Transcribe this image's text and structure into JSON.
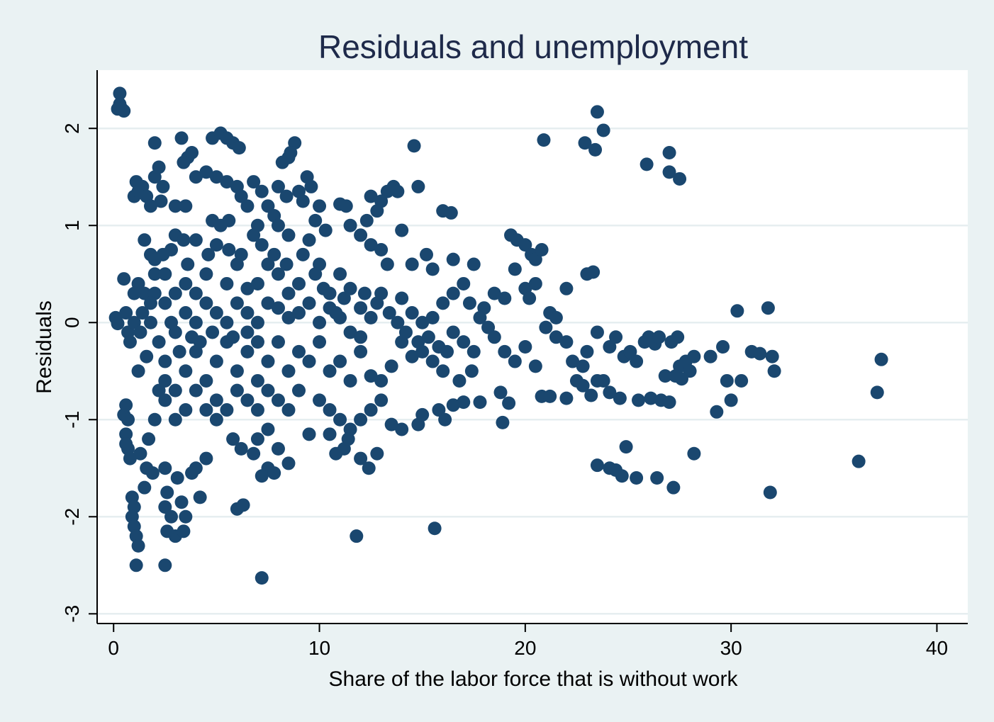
{
  "chart_data": {
    "type": "scatter",
    "title": "Residuals and unemployment",
    "xlabel": "Share of the labor force that is without work",
    "ylabel": "Residuals",
    "xlim": [
      -0.8,
      41.5
    ],
    "ylim": [
      -3.1,
      2.6
    ],
    "xticks": [
      0,
      10,
      20,
      30,
      40
    ],
    "xtick_labels": [
      "0",
      "10",
      "20",
      "30",
      "40"
    ],
    "yticks": [
      -3,
      -2,
      -1,
      0,
      1,
      2
    ],
    "ytick_labels": [
      "-3",
      "-2",
      "-1",
      "0",
      "1",
      "2"
    ],
    "grid": true,
    "marker_color": "#1a476f",
    "plot_background": "#ffffff",
    "figure_background": "#eaf2f3",
    "points": [
      [
        0.3,
        2.36
      ],
      [
        0.3,
        2.25
      ],
      [
        0.4,
        2.2
      ],
      [
        0.5,
        2.18
      ],
      [
        0.2,
        2.2
      ],
      [
        0.1,
        0.05
      ],
      [
        0.2,
        -0.01
      ],
      [
        0.5,
        0.45
      ],
      [
        0.6,
        0.1
      ],
      [
        0.7,
        -0.1
      ],
      [
        0.8,
        -0.2
      ],
      [
        0.5,
        -0.95
      ],
      [
        0.6,
        -0.85
      ],
      [
        0.7,
        -1.0
      ],
      [
        0.6,
        -1.15
      ],
      [
        0.7,
        -1.3
      ],
      [
        0.8,
        -1.4
      ],
      [
        0.6,
        -1.25
      ],
      [
        0.9,
        -1.8
      ],
      [
        1.0,
        -1.9
      ],
      [
        0.9,
        -2.0
      ],
      [
        1.0,
        -2.1
      ],
      [
        1.1,
        -2.2
      ],
      [
        1.2,
        -2.3
      ],
      [
        1.1,
        -2.5
      ],
      [
        1.0,
        1.3
      ],
      [
        1.1,
        1.45
      ],
      [
        1.2,
        1.35
      ],
      [
        1.4,
        1.4
      ],
      [
        1.6,
        1.3
      ],
      [
        1.8,
        1.2
      ],
      [
        2.0,
        1.5
      ],
      [
        2.2,
        1.6
      ],
      [
        2.0,
        1.85
      ],
      [
        2.4,
        1.4
      ],
      [
        2.3,
        1.25
      ],
      [
        1.5,
        0.85
      ],
      [
        1.8,
        0.7
      ],
      [
        2.0,
        0.5
      ],
      [
        1.2,
        0.4
      ],
      [
        1.5,
        0.3
      ],
      [
        1.8,
        0.0
      ],
      [
        1.2,
        -0.5
      ],
      [
        1.6,
        -0.35
      ],
      [
        1.3,
        -1.35
      ],
      [
        1.6,
        -1.5
      ],
      [
        1.9,
        -1.55
      ],
      [
        1.5,
        -1.7
      ],
      [
        1.7,
        -1.2
      ],
      [
        2.0,
        -1.0
      ],
      [
        2.2,
        -0.7
      ],
      [
        2.5,
        -0.6
      ],
      [
        2.5,
        -1.5
      ],
      [
        2.6,
        -1.75
      ],
      [
        2.5,
        -1.9
      ],
      [
        2.8,
        -2.0
      ],
      [
        3.0,
        -2.2
      ],
      [
        2.6,
        -2.15
      ],
      [
        2.5,
        -2.5
      ],
      [
        3.1,
        -1.6
      ],
      [
        3.3,
        -1.85
      ],
      [
        3.5,
        -2.0
      ],
      [
        3.4,
        -2.15
      ],
      [
        3.0,
        1.2
      ],
      [
        3.3,
        1.9
      ],
      [
        3.6,
        1.7
      ],
      [
        3.8,
        1.75
      ],
      [
        3.4,
        1.65
      ],
      [
        3.5,
        1.2
      ],
      [
        3.0,
        0.9
      ],
      [
        3.6,
        0.6
      ],
      [
        4.0,
        1.5
      ],
      [
        4.5,
        1.55
      ],
      [
        4.8,
        1.9
      ],
      [
        5.2,
        1.95
      ],
      [
        5.5,
        1.9
      ],
      [
        5.8,
        1.85
      ],
      [
        6.1,
        1.8
      ],
      [
        5.0,
        1.5
      ],
      [
        5.5,
        1.45
      ],
      [
        6.0,
        1.4
      ],
      [
        4.8,
        1.05
      ],
      [
        5.2,
        1.0
      ],
      [
        5.6,
        1.05
      ],
      [
        6.2,
        1.3
      ],
      [
        6.5,
        1.2
      ],
      [
        6.8,
        1.45
      ],
      [
        7.2,
        1.35
      ],
      [
        7.5,
        1.2
      ],
      [
        7.0,
        1.0
      ],
      [
        7.8,
        1.1
      ],
      [
        8.2,
        1.65
      ],
      [
        8.5,
        1.7
      ],
      [
        8.8,
        1.85
      ],
      [
        8.6,
        1.75
      ],
      [
        8.0,
        1.4
      ],
      [
        8.4,
        1.3
      ],
      [
        8.0,
        1.0
      ],
      [
        8.5,
        0.9
      ],
      [
        9.0,
        1.35
      ],
      [
        9.4,
        1.5
      ],
      [
        9.6,
        1.4
      ],
      [
        9.2,
        1.25
      ],
      [
        10.0,
        1.2
      ],
      [
        9.8,
        1.05
      ],
      [
        10.3,
        0.95
      ],
      [
        9.5,
        0.85
      ],
      [
        11.0,
        1.22
      ],
      [
        11.3,
        1.2
      ],
      [
        11.5,
        1.0
      ],
      [
        12.0,
        0.9
      ],
      [
        12.3,
        1.05
      ],
      [
        12.5,
        1.3
      ],
      [
        12.8,
        1.15
      ],
      [
        13.0,
        1.25
      ],
      [
        13.3,
        1.35
      ],
      [
        13.6,
        1.4
      ],
      [
        13.8,
        1.35
      ],
      [
        14.0,
        0.95
      ],
      [
        12.5,
        0.8
      ],
      [
        13.0,
        0.75
      ],
      [
        13.3,
        0.6
      ],
      [
        14.5,
        0.6
      ],
      [
        14.8,
        1.4
      ],
      [
        14.6,
        1.82
      ],
      [
        15.2,
        0.7
      ],
      [
        15.5,
        0.55
      ],
      [
        16.0,
        1.15
      ],
      [
        16.4,
        1.13
      ],
      [
        16.5,
        0.65
      ],
      [
        17.0,
        0.4
      ],
      [
        17.5,
        0.6
      ],
      [
        17.3,
        0.2
      ],
      [
        18.0,
        0.15
      ],
      [
        18.5,
        0.3
      ],
      [
        19.0,
        0.25
      ],
      [
        19.3,
        0.9
      ],
      [
        19.6,
        0.85
      ],
      [
        20.0,
        0.8
      ],
      [
        20.3,
        0.7
      ],
      [
        20.5,
        0.65
      ],
      [
        20.8,
        0.75
      ],
      [
        19.5,
        0.55
      ],
      [
        20.0,
        0.35
      ],
      [
        20.5,
        0.4
      ],
      [
        20.2,
        0.25
      ],
      [
        21.2,
        0.1
      ],
      [
        21.5,
        0.05
      ],
      [
        22.0,
        0.35
      ],
      [
        20.9,
        1.88
      ],
      [
        23.0,
        0.5
      ],
      [
        23.3,
        0.52
      ],
      [
        22.9,
        1.85
      ],
      [
        23.4,
        1.78
      ],
      [
        23.5,
        2.17
      ],
      [
        23.8,
        1.98
      ],
      [
        25.9,
        1.63
      ],
      [
        27.0,
        1.75
      ],
      [
        27.0,
        1.55
      ],
      [
        27.5,
        1.48
      ],
      [
        21.0,
        -0.05
      ],
      [
        21.5,
        -0.15
      ],
      [
        22.0,
        -0.2
      ],
      [
        22.3,
        -0.4
      ],
      [
        22.8,
        -0.45
      ],
      [
        23.0,
        -0.3
      ],
      [
        23.5,
        -0.1
      ],
      [
        23.8,
        -0.6
      ],
      [
        24.1,
        -0.25
      ],
      [
        24.4,
        -0.15
      ],
      [
        24.8,
        -0.35
      ],
      [
        25.1,
        -0.3
      ],
      [
        25.4,
        -0.4
      ],
      [
        25.8,
        -0.2
      ],
      [
        26.0,
        -0.15
      ],
      [
        26.3,
        -0.22
      ],
      [
        26.5,
        -0.15
      ],
      [
        26.8,
        -0.55
      ],
      [
        27.1,
        -0.2
      ],
      [
        27.4,
        -0.15
      ],
      [
        27.5,
        -0.45
      ],
      [
        27.8,
        -0.4
      ],
      [
        28.0,
        -0.5
      ],
      [
        28.2,
        -0.35
      ],
      [
        29.0,
        -0.35
      ],
      [
        29.6,
        -0.25
      ],
      [
        30.3,
        0.12
      ],
      [
        31.8,
        0.15
      ],
      [
        31.0,
        -0.3
      ],
      [
        31.4,
        -0.32
      ],
      [
        32.0,
        -0.35
      ],
      [
        32.1,
        -0.5
      ],
      [
        30.5,
        -0.6
      ],
      [
        29.8,
        -0.6
      ],
      [
        30.0,
        -0.8
      ],
      [
        29.3,
        -0.92
      ],
      [
        20.8,
        -0.76
      ],
      [
        21.2,
        -0.76
      ],
      [
        22.0,
        -0.78
      ],
      [
        22.5,
        -0.6
      ],
      [
        22.8,
        -0.65
      ],
      [
        23.2,
        -0.75
      ],
      [
        23.5,
        -0.6
      ],
      [
        24.1,
        -0.72
      ],
      [
        24.6,
        -0.78
      ],
      [
        25.5,
        -0.8
      ],
      [
        26.1,
        -0.78
      ],
      [
        26.6,
        -0.8
      ],
      [
        27.0,
        -0.82
      ],
      [
        27.3,
        -0.55
      ],
      [
        27.6,
        -0.58
      ],
      [
        23.5,
        -1.47
      ],
      [
        24.1,
        -1.5
      ],
      [
        24.4,
        -1.52
      ],
      [
        24.7,
        -1.58
      ],
      [
        24.9,
        -1.28
      ],
      [
        25.4,
        -1.6
      ],
      [
        26.4,
        -1.6
      ],
      [
        27.2,
        -1.7
      ],
      [
        28.2,
        -1.35
      ],
      [
        31.9,
        -1.75
      ],
      [
        36.2,
        -1.43
      ],
      [
        37.1,
        -0.72
      ],
      [
        37.3,
        -0.38
      ],
      [
        10.0,
        -0.8
      ],
      [
        10.5,
        -0.9
      ],
      [
        11.0,
        -1.0
      ],
      [
        11.5,
        -1.1
      ],
      [
        12.0,
        -1.0
      ],
      [
        12.5,
        -0.9
      ],
      [
        13.0,
        -0.8
      ],
      [
        13.5,
        -1.05
      ],
      [
        14.0,
        -1.1
      ],
      [
        14.8,
        -1.05
      ],
      [
        15.0,
        -0.95
      ],
      [
        15.8,
        -0.9
      ],
      [
        16.1,
        -1.0
      ],
      [
        10.8,
        -1.35
      ],
      [
        11.2,
        -1.3
      ],
      [
        12.0,
        -1.4
      ],
      [
        12.4,
        -1.5
      ],
      [
        12.8,
        -1.35
      ],
      [
        9.5,
        -1.15
      ],
      [
        10.5,
        -1.15
      ],
      [
        11.4,
        -1.2
      ],
      [
        16.5,
        -0.85
      ],
      [
        17.0,
        -0.82
      ],
      [
        17.8,
        -0.82
      ],
      [
        18.8,
        -0.72
      ],
      [
        19.2,
        -0.83
      ],
      [
        18.9,
        -1.03
      ],
      [
        17.4,
        -0.5
      ],
      [
        16.8,
        -0.6
      ],
      [
        11.8,
        -2.2
      ],
      [
        15.6,
        -2.12
      ],
      [
        7.2,
        -2.63
      ],
      [
        6.0,
        -1.92
      ],
      [
        6.3,
        -1.88
      ],
      [
        7.5,
        -1.5
      ],
      [
        7.2,
        -1.58
      ],
      [
        7.8,
        -1.55
      ],
      [
        5.8,
        -1.2
      ],
      [
        6.2,
        -1.3
      ],
      [
        6.8,
        -1.35
      ],
      [
        7.0,
        -1.2
      ],
      [
        7.5,
        -1.1
      ],
      [
        8.0,
        -1.3
      ],
      [
        8.5,
        -1.45
      ],
      [
        5.0,
        -1.0
      ],
      [
        4.5,
        -1.4
      ],
      [
        4.0,
        -1.5
      ],
      [
        3.8,
        -1.55
      ],
      [
        4.2,
        -1.8
      ],
      [
        17.8,
        0.05
      ],
      [
        18.2,
        -0.05
      ],
      [
        18.5,
        -0.15
      ],
      [
        19.0,
        -0.3
      ],
      [
        19.5,
        -0.4
      ],
      [
        20.0,
        -0.25
      ],
      [
        20.5,
        -0.45
      ],
      [
        17.5,
        -0.3
      ],
      [
        17.0,
        -0.2
      ],
      [
        16.5,
        -0.1
      ],
      [
        15.0,
        -0.3
      ],
      [
        15.5,
        -0.4
      ],
      [
        16.0,
        -0.5
      ],
      [
        14.0,
        -0.2
      ],
      [
        14.5,
        -0.35
      ],
      [
        13.5,
        -0.45
      ],
      [
        13.0,
        -0.6
      ],
      [
        12.5,
        -0.55
      ],
      [
        13.0,
        0.3
      ],
      [
        14.0,
        0.25
      ],
      [
        14.5,
        0.1
      ],
      [
        15.0,
        0.0
      ],
      [
        15.5,
        0.05
      ],
      [
        16.0,
        0.2
      ],
      [
        16.5,
        0.3
      ],
      [
        12.0,
        0.15
      ],
      [
        11.5,
        0.35
      ],
      [
        11.0,
        0.5
      ],
      [
        10.5,
        0.3
      ],
      [
        10.0,
        0.6
      ],
      [
        9.0,
        0.1
      ],
      [
        8.5,
        0.3
      ],
      [
        8.0,
        0.5
      ],
      [
        7.5,
        0.2
      ],
      [
        7.0,
        0.0
      ],
      [
        6.5,
        0.35
      ],
      [
        6.0,
        0.6
      ],
      [
        5.5,
        0.4
      ],
      [
        5.0,
        0.8
      ],
      [
        4.5,
        0.5
      ],
      [
        4.0,
        0.3
      ],
      [
        3.5,
        0.1
      ],
      [
        3.0,
        -0.1
      ],
      [
        2.5,
        0.2
      ],
      [
        9.0,
        -0.3
      ],
      [
        8.5,
        -0.5
      ],
      [
        8.0,
        -0.2
      ],
      [
        7.5,
        -0.4
      ],
      [
        7.0,
        -0.6
      ],
      [
        6.5,
        -0.3
      ],
      [
        6.0,
        -0.5
      ],
      [
        5.5,
        -0.2
      ],
      [
        5.0,
        -0.4
      ],
      [
        4.5,
        -0.6
      ],
      [
        4.0,
        -0.3
      ],
      [
        3.5,
        -0.5
      ],
      [
        3.0,
        -0.7
      ],
      [
        2.5,
        -0.4
      ],
      [
        9.0,
        -0.7
      ],
      [
        8.5,
        -0.9
      ],
      [
        8.0,
        -0.8
      ],
      [
        7.5,
        -0.7
      ],
      [
        7.0,
        -0.9
      ],
      [
        6.5,
        -0.8
      ],
      [
        6.0,
        -0.7
      ],
      [
        5.5,
        -0.9
      ],
      [
        5.0,
        -0.8
      ],
      [
        4.5,
        -0.9
      ],
      [
        4.0,
        -0.7
      ],
      [
        3.5,
        -0.9
      ],
      [
        3.0,
        -1.0
      ],
      [
        2.5,
        -0.8
      ],
      [
        11.0,
        -0.4
      ],
      [
        11.5,
        -0.6
      ],
      [
        12.0,
        -0.3
      ],
      [
        10.5,
        -0.5
      ],
      [
        10.0,
        -0.2
      ],
      [
        9.5,
        -0.4
      ],
      [
        10.0,
        0.0
      ],
      [
        10.5,
        0.15
      ],
      [
        11.0,
        0.05
      ],
      [
        11.5,
        -0.1
      ],
      [
        12.0,
        -0.15
      ],
      [
        12.5,
        0.05
      ],
      [
        6.0,
        0.2
      ],
      [
        6.5,
        0.1
      ],
      [
        7.0,
        0.4
      ],
      [
        7.5,
        0.6
      ],
      [
        8.0,
        0.15
      ],
      [
        8.5,
        0.05
      ],
      [
        5.0,
        0.1
      ],
      [
        5.5,
        0.0
      ],
      [
        4.5,
        0.2
      ],
      [
        4.0,
        0.0
      ],
      [
        3.5,
        0.4
      ],
      [
        3.0,
        0.3
      ],
      [
        2.5,
        0.5
      ],
      [
        2.0,
        0.3
      ],
      [
        6.5,
        -0.1
      ],
      [
        7.0,
        -0.2
      ],
      [
        5.8,
        -0.15
      ],
      [
        4.8,
        -0.1
      ],
      [
        4.2,
        -0.2
      ],
      [
        3.8,
        -0.15
      ],
      [
        3.2,
        -0.3
      ],
      [
        2.8,
        0.0
      ],
      [
        2.2,
        -0.2
      ],
      [
        1.8,
        0.2
      ],
      [
        1.4,
        0.1
      ],
      [
        1.0,
        0.0
      ],
      [
        1.0,
        0.3
      ],
      [
        1.3,
        -0.1
      ],
      [
        7.2,
        0.8
      ],
      [
        7.8,
        0.7
      ],
      [
        8.4,
        0.6
      ],
      [
        9.2,
        0.7
      ],
      [
        9.8,
        0.5
      ],
      [
        6.8,
        0.9
      ],
      [
        6.2,
        0.7
      ],
      [
        5.6,
        0.75
      ],
      [
        4.6,
        0.7
      ],
      [
        4.0,
        0.85
      ],
      [
        3.4,
        0.85
      ],
      [
        2.8,
        0.75
      ],
      [
        2.4,
        0.7
      ],
      [
        2.0,
        0.65
      ],
      [
        9.5,
        0.2
      ],
      [
        9.0,
        0.4
      ],
      [
        10.2,
        0.35
      ],
      [
        10.8,
        0.1
      ],
      [
        11.2,
        0.25
      ],
      [
        12.2,
        0.3
      ],
      [
        12.8,
        0.2
      ],
      [
        13.4,
        0.1
      ],
      [
        13.8,
        0.0
      ],
      [
        14.2,
        -0.1
      ],
      [
        14.8,
        -0.2
      ],
      [
        15.3,
        -0.15
      ],
      [
        15.8,
        -0.25
      ],
      [
        16.2,
        -0.3
      ]
    ]
  }
}
